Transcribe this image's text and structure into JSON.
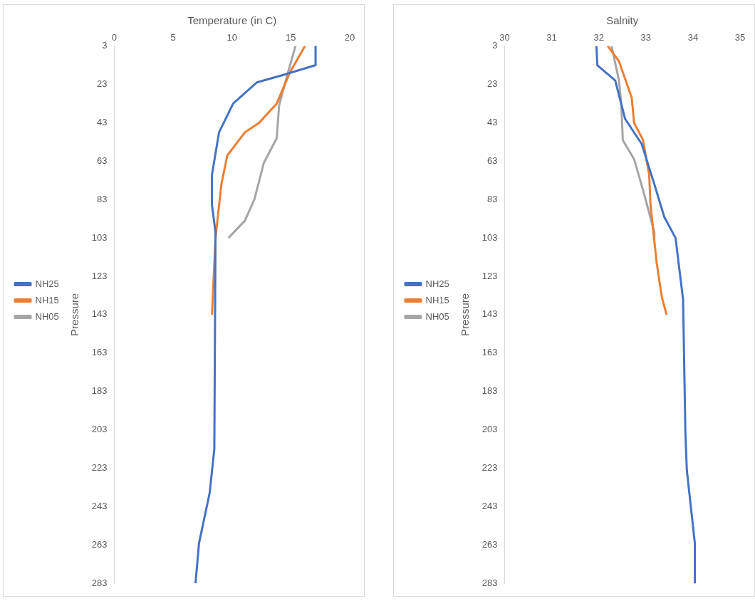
{
  "chart_data": [
    {
      "type": "line",
      "xlabel": "Temperature (in C)",
      "ylabel": "Pressure",
      "xlim": [
        0,
        20
      ],
      "xticks": [
        0,
        5,
        10,
        15,
        20
      ],
      "ylim": [
        283,
        3
      ],
      "yticks": [
        3,
        23,
        43,
        63,
        83,
        103,
        123,
        143,
        163,
        183,
        203,
        223,
        243,
        263,
        283
      ],
      "grid": false,
      "legend": "left",
      "marker": "none",
      "line_style": "solid",
      "series": [
        {
          "name": "NH25",
          "color": "#4472c4",
          "x": [
            17.1,
            17.1,
            14.4,
            12.1,
            10.1,
            8.9,
            8.3,
            8.3,
            8.6,
            8.5,
            8.1,
            7.2,
            6.9
          ],
          "values": [
            3,
            13,
            18,
            22,
            33,
            48,
            70,
            86,
            100,
            213,
            236,
            262,
            283
          ]
        },
        {
          "name": "NH15",
          "color": "#ed7d31",
          "x": [
            16.2,
            14.9,
            13.8,
            12.3,
            11.1,
            9.6,
            9.1,
            8.6,
            8.3
          ],
          "values": [
            3,
            17,
            33,
            43,
            48,
            60,
            75,
            103,
            143
          ]
        },
        {
          "name": "NH05",
          "color": "#a5a5a5",
          "x": [
            15.4,
            14.7,
            14.0,
            13.8,
            12.7,
            11.9,
            11.1,
            9.7
          ],
          "values": [
            3,
            18,
            34,
            51,
            64,
            83,
            94,
            103
          ]
        }
      ]
    },
    {
      "type": "line",
      "xlabel": "Salnity",
      "ylabel": "Pressure",
      "xlim": [
        30,
        35
      ],
      "xticks": [
        30,
        31,
        32,
        33,
        34,
        35
      ],
      "ylim": [
        283,
        3
      ],
      "yticks": [
        3,
        23,
        43,
        63,
        83,
        103,
        123,
        143,
        163,
        183,
        203,
        223,
        243,
        263,
        283
      ],
      "grid": false,
      "legend": "left",
      "marker": "none",
      "line_style": "solid",
      "series": [
        {
          "name": "NH25",
          "color": "#4472c4",
          "x": [
            31.95,
            31.97,
            32.35,
            32.56,
            32.91,
            33.18,
            33.39,
            33.63,
            33.79,
            33.84,
            33.87,
            34.04,
            34.04
          ],
          "values": [
            3,
            13,
            21,
            41,
            54,
            75,
            92,
            103,
            135,
            205,
            224,
            262,
            283
          ]
        },
        {
          "name": "NH15",
          "color": "#ed7d31",
          "x": [
            32.19,
            32.43,
            32.7,
            32.75,
            32.94,
            33.07,
            33.1,
            33.23,
            33.34,
            33.44
          ],
          "values": [
            3,
            11,
            30,
            43,
            52,
            70,
            86,
            116,
            134,
            143
          ]
        },
        {
          "name": "NH05",
          "color": "#a5a5a5",
          "x": [
            32.27,
            32.43,
            32.48,
            32.51,
            32.75,
            32.94,
            33.18,
            33.18
          ],
          "values": [
            3,
            21,
            34,
            52,
            62,
            78,
            100,
            103
          ]
        }
      ]
    }
  ]
}
